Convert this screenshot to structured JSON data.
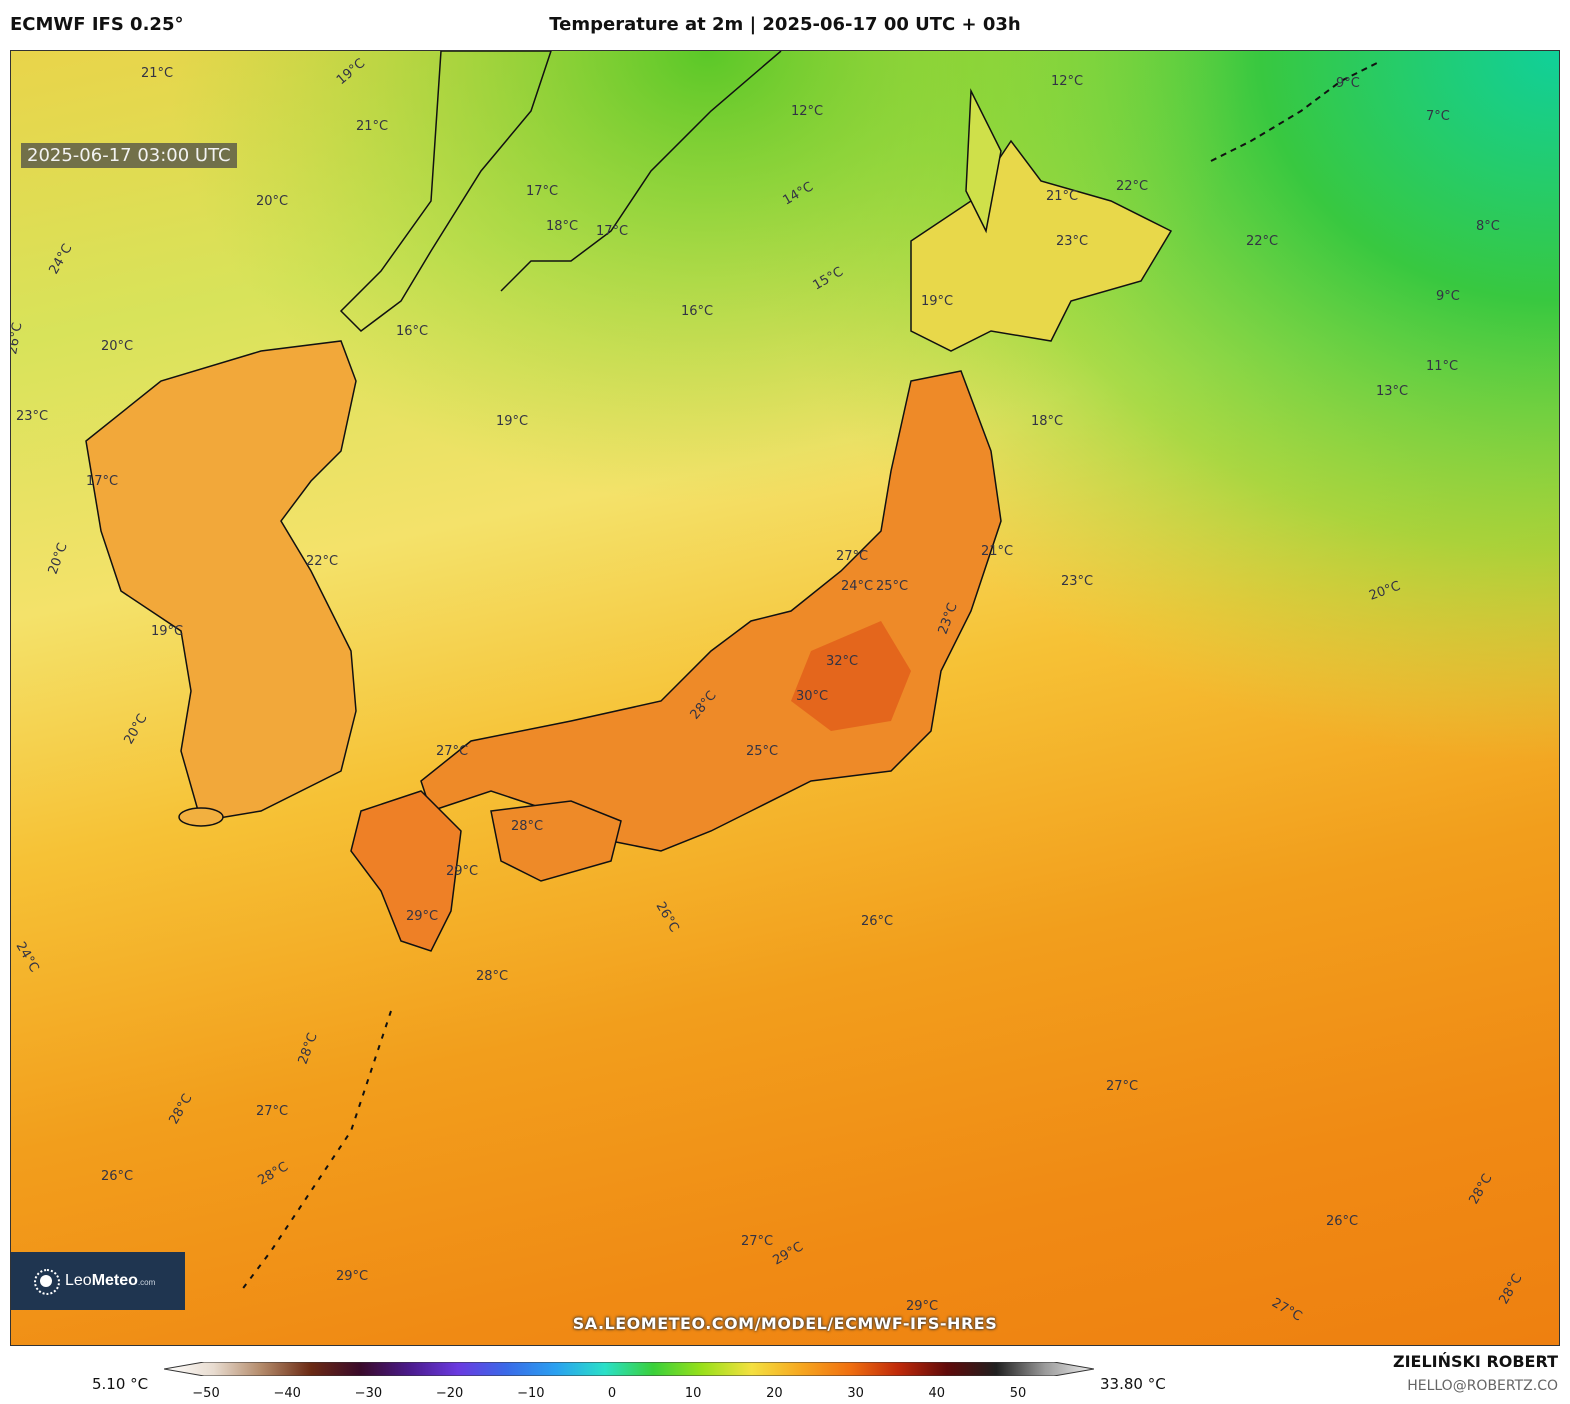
{
  "header": {
    "model": "ECMWF IFS 0.25°",
    "title": "Temperature at 2m | 2025-06-17 00 UTC + 03h"
  },
  "map": {
    "valid_time": "2025-06-17 03:00 UTC",
    "labels": [
      {
        "text": "21°C"
      },
      {
        "text": "19°C"
      },
      {
        "text": "21°C"
      },
      {
        "text": "20°C"
      },
      {
        "text": "17°C"
      },
      {
        "text": "18°C"
      },
      {
        "text": "17°C"
      },
      {
        "text": "12°C"
      },
      {
        "text": "14°C"
      },
      {
        "text": "15°C"
      },
      {
        "text": "16°C"
      },
      {
        "text": "16°C"
      },
      {
        "text": "12°C"
      },
      {
        "text": "21°C"
      },
      {
        "text": "22°C"
      },
      {
        "text": "23°C"
      },
      {
        "text": "22°C"
      },
      {
        "text": "19°C"
      },
      {
        "text": "9°C"
      },
      {
        "text": "7°C"
      },
      {
        "text": "8°C"
      },
      {
        "text": "9°C"
      },
      {
        "text": "11°C"
      },
      {
        "text": "13°C"
      },
      {
        "text": "18°C"
      },
      {
        "text": "19°C"
      },
      {
        "text": "24°C"
      },
      {
        "text": "20°C"
      },
      {
        "text": "23°C"
      },
      {
        "text": "17°C"
      },
      {
        "text": "20°C"
      },
      {
        "text": "19°C"
      },
      {
        "text": "22°C"
      },
      {
        "text": "26°C"
      },
      {
        "text": "20°C"
      },
      {
        "text": "23°C"
      },
      {
        "text": "21°C"
      },
      {
        "text": "23°C"
      },
      {
        "text": "20°C"
      },
      {
        "text": "27°C"
      },
      {
        "text": "24°C"
      },
      {
        "text": "25°C"
      },
      {
        "text": "32°C"
      },
      {
        "text": "30°C"
      },
      {
        "text": "25°C"
      },
      {
        "text": "28°C"
      },
      {
        "text": "27°C"
      },
      {
        "text": "28°C"
      },
      {
        "text": "29°C"
      },
      {
        "text": "29°C"
      },
      {
        "text": "26°C"
      },
      {
        "text": "26°C"
      },
      {
        "text": "28°C"
      },
      {
        "text": "24°C"
      },
      {
        "text": "28°C"
      },
      {
        "text": "27°C"
      },
      {
        "text": "28°C"
      },
      {
        "text": "26°C"
      },
      {
        "text": "28°C"
      },
      {
        "text": "27°C"
      },
      {
        "text": "29°C"
      },
      {
        "text": "27°C"
      },
      {
        "text": "29°C"
      },
      {
        "text": "29°C"
      },
      {
        "text": "26°C"
      },
      {
        "text": "28°C"
      },
      {
        "text": "27°C"
      },
      {
        "text": "28°C"
      }
    ]
  },
  "logo": {
    "brand_light": "Leo",
    "brand_bold": "Meteo",
    "suffix": ".com"
  },
  "footer": {
    "url": "SA.LEOMETEO.COM/MODEL/ECMWF-IFS-HRES",
    "author": "ZIELIŃSKI ROBERT",
    "email": "HELLO@ROBERTZ.CO"
  },
  "colorbar": {
    "min_value": "5.10 °C",
    "max_value": "33.80 °C",
    "ticks": [
      "−50",
      "−40",
      "−30",
      "−20",
      "−10",
      "0",
      "10",
      "20",
      "30",
      "40",
      "50"
    ],
    "colors": [
      "#ffffff",
      "#e8dcd0",
      "#b38a6a",
      "#6b2a14",
      "#3a0a2a",
      "#4a1a8a",
      "#6a3ae0",
      "#3a6ae8",
      "#2aa0f0",
      "#2ae0c8",
      "#3ad03a",
      "#9ae01a",
      "#f4e040",
      "#f6a820",
      "#f07010",
      "#c02a0a",
      "#600a0a",
      "#202020",
      "#9a9a9a",
      "#f0f0f0"
    ]
  }
}
